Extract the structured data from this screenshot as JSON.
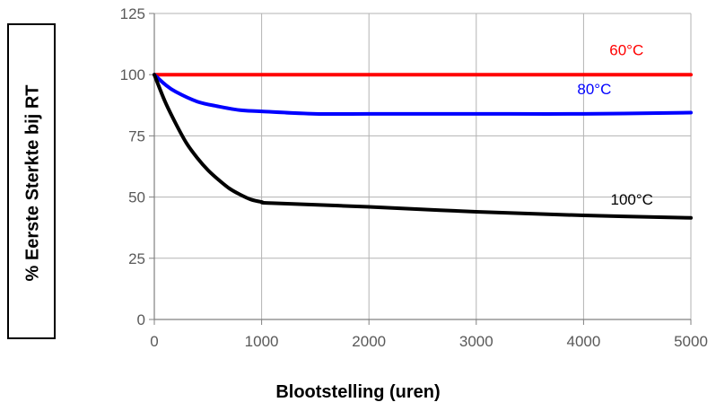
{
  "chart_data": {
    "type": "line",
    "title": "",
    "xlabel": "Blootstelling (uren)",
    "ylabel": "% Eerste Sterkte bij RT",
    "xlim": [
      0,
      5000
    ],
    "ylim": [
      0,
      125
    ],
    "x_ticks": [
      0,
      1000,
      2000,
      3000,
      4000,
      5000
    ],
    "y_ticks": [
      0,
      25,
      50,
      75,
      100,
      125
    ],
    "grid": true,
    "series": [
      {
        "name": "60°C",
        "color": "#ff0000",
        "x": [
          0,
          1000,
          2000,
          3000,
          4000,
          5000
        ],
        "y": [
          100,
          100,
          100,
          100,
          100,
          100
        ]
      },
      {
        "name": "80°C",
        "color": "#0000ff",
        "x": [
          0,
          100,
          200,
          400,
          600,
          800,
          1000,
          1500,
          2000,
          3000,
          4000,
          5000
        ],
        "y": [
          100,
          96,
          93,
          89,
          87,
          85.5,
          85,
          84,
          84,
          84,
          84,
          84.5
        ]
      },
      {
        "name": "100°C",
        "color": "#000000",
        "x": [
          0,
          100,
          200,
          300,
          400,
          500,
          600,
          700,
          800,
          900,
          1000,
          1100,
          2000,
          3000,
          4000,
          5000
        ],
        "y": [
          100,
          89,
          80,
          72,
          66,
          61,
          57,
          53.5,
          51,
          49,
          48,
          47.5,
          46,
          44,
          42.5,
          41.5
        ]
      }
    ]
  }
}
